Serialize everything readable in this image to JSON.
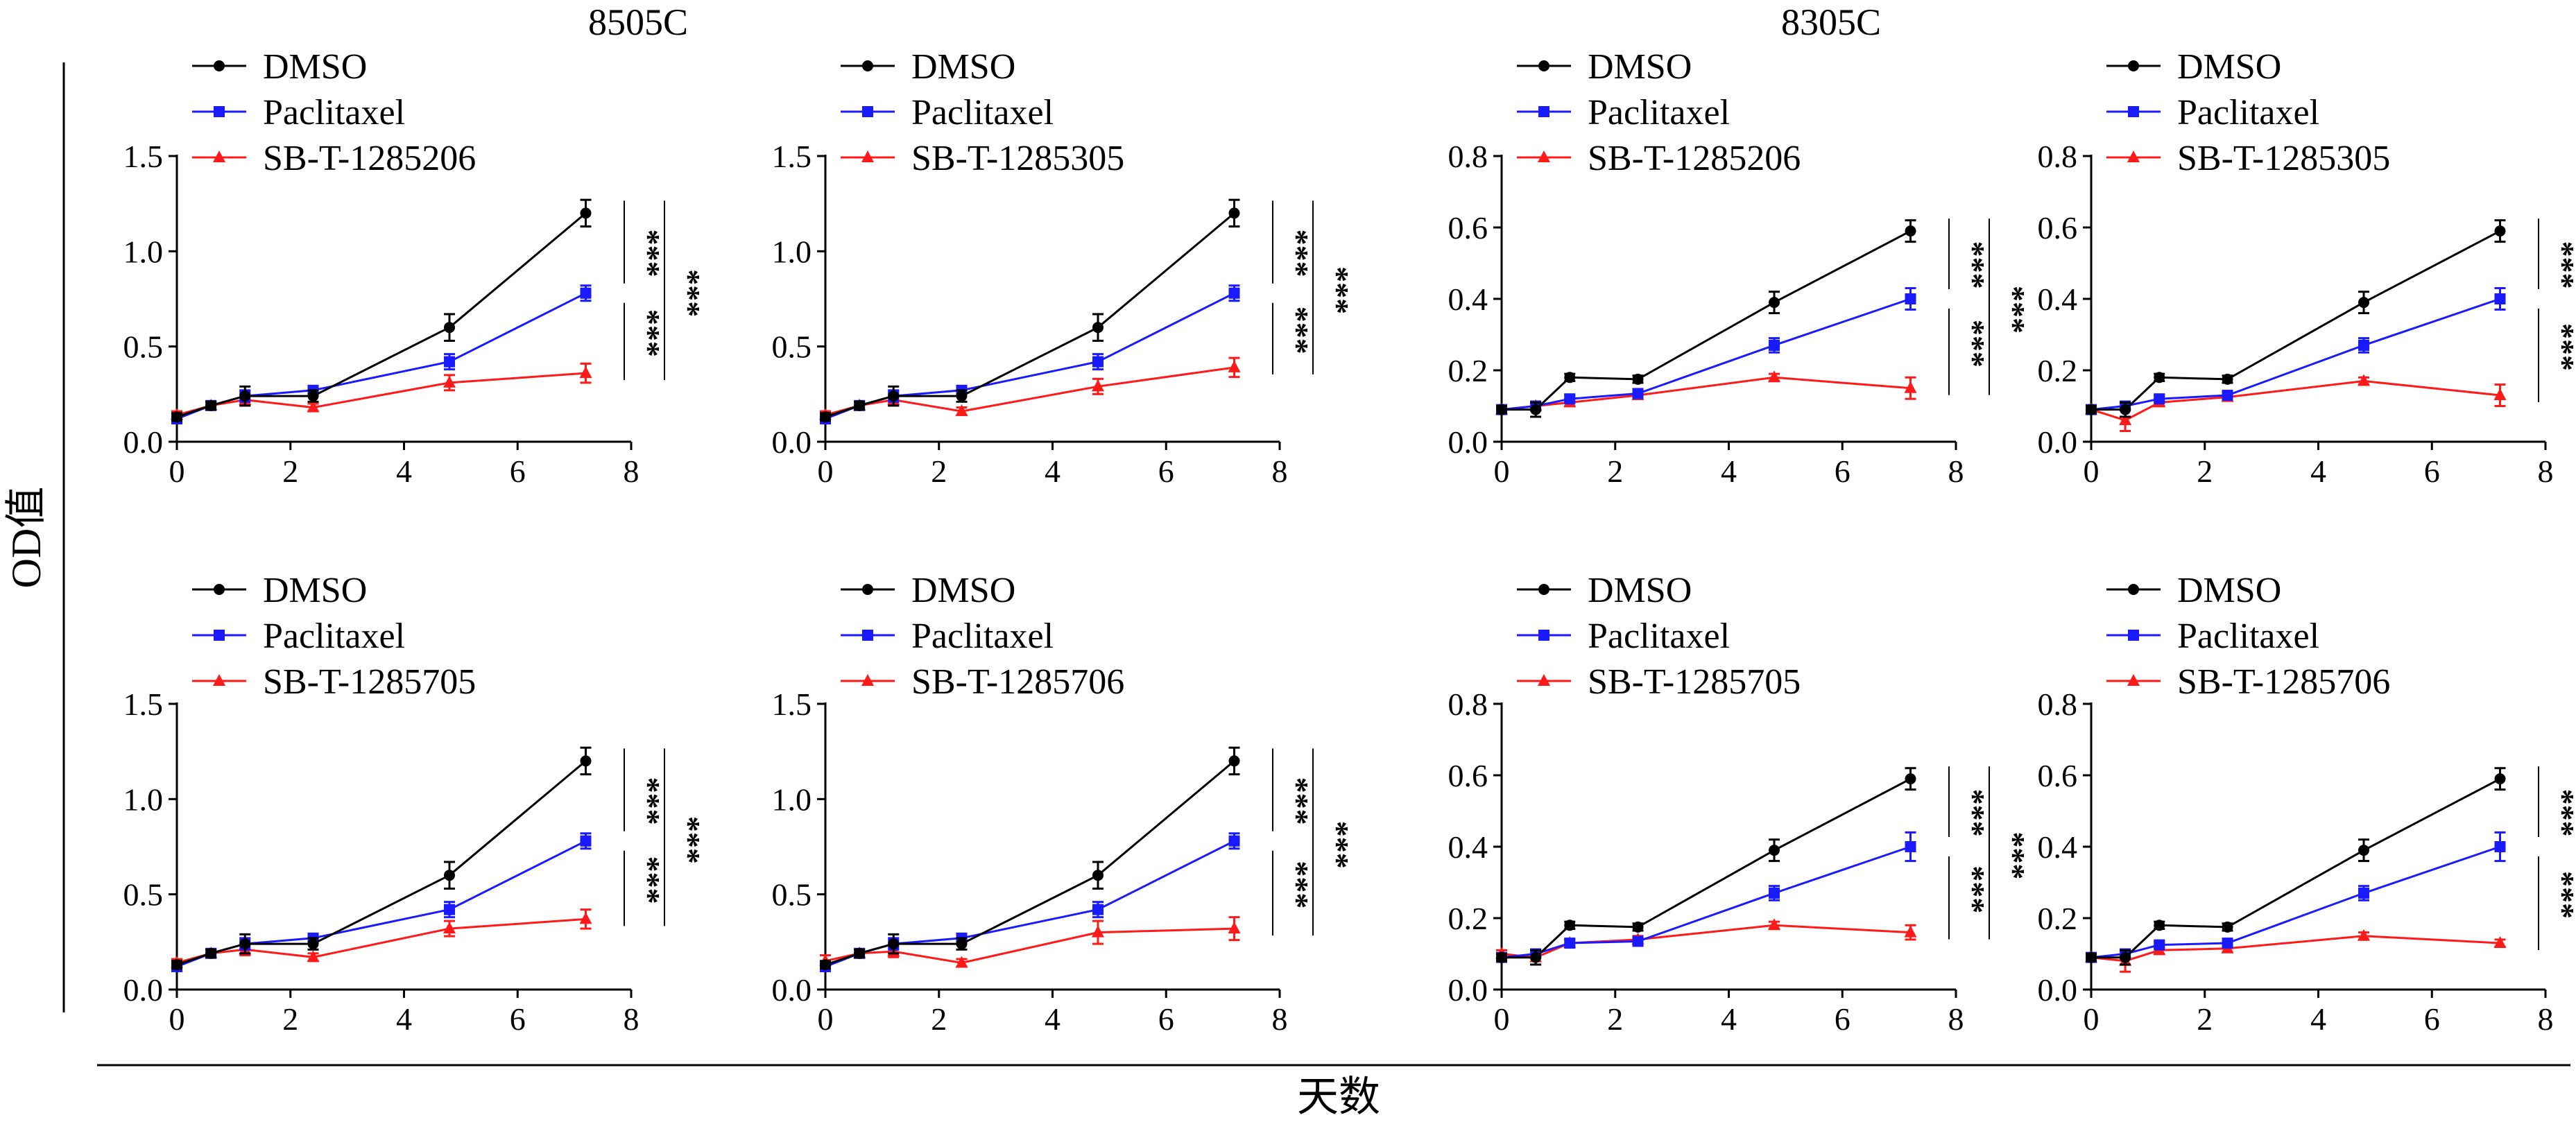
{
  "figure": {
    "group_titles": [
      "8505C",
      "8305C"
    ],
    "ylabel": "OD值",
    "xlabel": "天数"
  },
  "colors": {
    "DMSO": "#000000",
    "Paclitaxel": "#1a1aff",
    "SB": "#ff1a1a"
  },
  "chart_data": [
    {
      "type": "line",
      "group": "8505C",
      "row": 0,
      "col": 0,
      "x": [
        0,
        0.6,
        1.2,
        2.4,
        4.8,
        7.2
      ],
      "xlim": [
        0,
        8
      ],
      "xticks": [
        "0",
        "2",
        "4",
        "6",
        "8"
      ],
      "xtick_values": [
        0,
        2,
        4,
        6,
        8
      ],
      "ylim": [
        0,
        1.5
      ],
      "yticks": [
        "0.0",
        "0.5",
        "1.0",
        "1.5"
      ],
      "ytick_values": [
        0,
        0.5,
        1.0,
        1.5
      ],
      "series": [
        {
          "name": "DMSO",
          "marker": "circle",
          "values": [
            0.13,
            0.19,
            0.24,
            0.24,
            0.6,
            1.2
          ],
          "errors": [
            0.02,
            0.02,
            0.05,
            0.03,
            0.07,
            0.07
          ]
        },
        {
          "name": "Paclitaxel",
          "marker": "square",
          "values": [
            0.12,
            0.19,
            0.24,
            0.27,
            0.42,
            0.78
          ],
          "errors": [
            0.02,
            0.02,
            0.03,
            0.02,
            0.04,
            0.04
          ]
        },
        {
          "name": "SB-T-1285206",
          "marker": "triangle",
          "values": [
            0.14,
            0.19,
            0.22,
            0.18,
            0.31,
            0.36
          ],
          "errors": [
            0.02,
            0.02,
            0.03,
            0.02,
            0.04,
            0.05
          ]
        }
      ],
      "significance": [
        "***",
        "***",
        "***"
      ]
    },
    {
      "type": "line",
      "group": "8505C",
      "row": 0,
      "col": 1,
      "x": [
        0,
        0.6,
        1.2,
        2.4,
        4.8,
        7.2
      ],
      "xlim": [
        0,
        8
      ],
      "xticks": [
        "0",
        "2",
        "4",
        "6",
        "8"
      ],
      "xtick_values": [
        0,
        2,
        4,
        6,
        8
      ],
      "ylim": [
        0,
        1.5
      ],
      "yticks": [
        "0.0",
        "0.5",
        "1.0",
        "1.5"
      ],
      "ytick_values": [
        0,
        0.5,
        1.0,
        1.5
      ],
      "series": [
        {
          "name": "DMSO",
          "marker": "circle",
          "values": [
            0.13,
            0.19,
            0.24,
            0.24,
            0.6,
            1.2
          ],
          "errors": [
            0.02,
            0.02,
            0.05,
            0.03,
            0.07,
            0.07
          ]
        },
        {
          "name": "Paclitaxel",
          "marker": "square",
          "values": [
            0.12,
            0.19,
            0.24,
            0.27,
            0.42,
            0.78
          ],
          "errors": [
            0.02,
            0.02,
            0.03,
            0.02,
            0.04,
            0.04
          ]
        },
        {
          "name": "SB-T-1285305",
          "marker": "triangle",
          "values": [
            0.14,
            0.19,
            0.22,
            0.16,
            0.29,
            0.39
          ],
          "errors": [
            0.02,
            0.02,
            0.03,
            0.02,
            0.04,
            0.05
          ]
        }
      ],
      "significance": [
        "***",
        "***",
        "***"
      ]
    },
    {
      "type": "line",
      "group": "8305C",
      "row": 0,
      "col": 2,
      "x": [
        0,
        0.6,
        1.2,
        2.4,
        4.8,
        7.2
      ],
      "xlim": [
        0,
        8
      ],
      "xticks": [
        "0",
        "2",
        "4",
        "6",
        "8"
      ],
      "xtick_values": [
        0,
        2,
        4,
        6,
        8
      ],
      "ylim": [
        0,
        0.8
      ],
      "yticks": [
        "0.0",
        "0.2",
        "0.4",
        "0.6",
        "0.8"
      ],
      "ytick_values": [
        0,
        0.2,
        0.4,
        0.6,
        0.8
      ],
      "series": [
        {
          "name": "DMSO",
          "marker": "circle",
          "values": [
            0.09,
            0.09,
            0.18,
            0.175,
            0.39,
            0.59
          ],
          "errors": [
            0.01,
            0.02,
            0.01,
            0.01,
            0.03,
            0.03
          ]
        },
        {
          "name": "Paclitaxel",
          "marker": "square",
          "values": [
            0.09,
            0.1,
            0.12,
            0.135,
            0.27,
            0.4
          ],
          "errors": [
            0.01,
            0.01,
            0.01,
            0.01,
            0.02,
            0.03
          ]
        },
        {
          "name": "SB-T-1285206",
          "marker": "triangle",
          "values": [
            0.09,
            0.1,
            0.11,
            0.13,
            0.18,
            0.15
          ],
          "errors": [
            0.01,
            0.01,
            0.01,
            0.01,
            0.01,
            0.03
          ]
        }
      ],
      "significance": [
        "***",
        "***",
        "***"
      ]
    },
    {
      "type": "line",
      "group": "8305C",
      "row": 0,
      "col": 3,
      "x": [
        0,
        0.6,
        1.2,
        2.4,
        4.8,
        7.2
      ],
      "xlim": [
        0,
        8
      ],
      "xticks": [
        "0",
        "2",
        "4",
        "6",
        "8"
      ],
      "xtick_values": [
        0,
        2,
        4,
        6,
        8
      ],
      "ylim": [
        0,
        0.8
      ],
      "yticks": [
        "0.0",
        "0.2",
        "0.4",
        "0.6",
        "0.8"
      ],
      "ytick_values": [
        0,
        0.2,
        0.4,
        0.6,
        0.8
      ],
      "series": [
        {
          "name": "DMSO",
          "marker": "circle",
          "values": [
            0.09,
            0.09,
            0.18,
            0.175,
            0.39,
            0.59
          ],
          "errors": [
            0.01,
            0.02,
            0.01,
            0.01,
            0.03,
            0.03
          ]
        },
        {
          "name": "Paclitaxel",
          "marker": "square",
          "values": [
            0.09,
            0.1,
            0.12,
            0.13,
            0.27,
            0.4
          ],
          "errors": [
            0.01,
            0.01,
            0.01,
            0.01,
            0.02,
            0.03
          ]
        },
        {
          "name": "SB-T-1285305",
          "marker": "triangle",
          "values": [
            0.09,
            0.06,
            0.11,
            0.125,
            0.17,
            0.13
          ],
          "errors": [
            0.01,
            0.03,
            0.01,
            0.01,
            0.01,
            0.03
          ]
        }
      ],
      "significance": [
        "***",
        "***",
        "***"
      ]
    },
    {
      "type": "line",
      "group": "8505C",
      "row": 1,
      "col": 0,
      "x": [
        0,
        0.6,
        1.2,
        2.4,
        4.8,
        7.2
      ],
      "xlim": [
        0,
        8
      ],
      "xticks": [
        "0",
        "2",
        "4",
        "6",
        "8"
      ],
      "xtick_values": [
        0,
        2,
        4,
        6,
        8
      ],
      "ylim": [
        0,
        1.5
      ],
      "yticks": [
        "0.0",
        "0.5",
        "1.0",
        "1.5"
      ],
      "ytick_values": [
        0,
        0.5,
        1.0,
        1.5
      ],
      "series": [
        {
          "name": "DMSO",
          "marker": "circle",
          "values": [
            0.13,
            0.19,
            0.24,
            0.24,
            0.6,
            1.2
          ],
          "errors": [
            0.02,
            0.02,
            0.05,
            0.03,
            0.07,
            0.07
          ]
        },
        {
          "name": "Paclitaxel",
          "marker": "square",
          "values": [
            0.12,
            0.19,
            0.24,
            0.27,
            0.42,
            0.78
          ],
          "errors": [
            0.02,
            0.02,
            0.03,
            0.02,
            0.04,
            0.04
          ]
        },
        {
          "name": "SB-T-1285705",
          "marker": "triangle",
          "values": [
            0.14,
            0.19,
            0.21,
            0.17,
            0.32,
            0.37
          ],
          "errors": [
            0.02,
            0.02,
            0.03,
            0.02,
            0.04,
            0.05
          ]
        }
      ],
      "significance": [
        "***",
        "***",
        "***"
      ]
    },
    {
      "type": "line",
      "group": "8505C",
      "row": 1,
      "col": 1,
      "x": [
        0,
        0.6,
        1.2,
        2.4,
        4.8,
        7.2
      ],
      "xlim": [
        0,
        8
      ],
      "xticks": [
        "0",
        "2",
        "4",
        "6",
        "8"
      ],
      "xtick_values": [
        0,
        2,
        4,
        6,
        8
      ],
      "ylim": [
        0,
        1.5
      ],
      "yticks": [
        "0.0",
        "0.5",
        "1.0",
        "1.5"
      ],
      "ytick_values": [
        0,
        0.5,
        1.0,
        1.5
      ],
      "series": [
        {
          "name": "DMSO",
          "marker": "circle",
          "values": [
            0.13,
            0.19,
            0.24,
            0.24,
            0.6,
            1.2
          ],
          "errors": [
            0.02,
            0.02,
            0.05,
            0.03,
            0.07,
            0.07
          ]
        },
        {
          "name": "Paclitaxel",
          "marker": "square",
          "values": [
            0.12,
            0.19,
            0.24,
            0.27,
            0.42,
            0.78
          ],
          "errors": [
            0.02,
            0.02,
            0.03,
            0.02,
            0.04,
            0.04
          ]
        },
        {
          "name": "SB-T-1285706",
          "marker": "triangle",
          "values": [
            0.15,
            0.19,
            0.2,
            0.14,
            0.3,
            0.32
          ],
          "errors": [
            0.03,
            0.02,
            0.03,
            0.02,
            0.06,
            0.06
          ]
        }
      ],
      "significance": [
        "***",
        "***",
        "***"
      ]
    },
    {
      "type": "line",
      "group": "8305C",
      "row": 1,
      "col": 2,
      "x": [
        0,
        0.6,
        1.2,
        2.4,
        4.8,
        7.2
      ],
      "xlim": [
        0,
        8
      ],
      "xticks": [
        "0",
        "2",
        "4",
        "6",
        "8"
      ],
      "xtick_values": [
        0,
        2,
        4,
        6,
        8
      ],
      "ylim": [
        0,
        0.8
      ],
      "yticks": [
        "0.0",
        "0.2",
        "0.4",
        "0.6",
        "0.8"
      ],
      "ytick_values": [
        0,
        0.2,
        0.4,
        0.6,
        0.8
      ],
      "series": [
        {
          "name": "DMSO",
          "marker": "circle",
          "values": [
            0.09,
            0.09,
            0.18,
            0.175,
            0.39,
            0.59
          ],
          "errors": [
            0.01,
            0.02,
            0.01,
            0.01,
            0.03,
            0.03
          ]
        },
        {
          "name": "Paclitaxel",
          "marker": "square",
          "values": [
            0.09,
            0.1,
            0.13,
            0.135,
            0.27,
            0.4
          ],
          "errors": [
            0.01,
            0.01,
            0.01,
            0.01,
            0.02,
            0.04
          ]
        },
        {
          "name": "SB-T-1285705",
          "marker": "triangle",
          "values": [
            0.1,
            0.09,
            0.13,
            0.14,
            0.18,
            0.16
          ],
          "errors": [
            0.01,
            0.02,
            0.01,
            0.01,
            0.01,
            0.02
          ]
        }
      ],
      "significance": [
        "***",
        "***",
        "***"
      ]
    },
    {
      "type": "line",
      "group": "8305C",
      "row": 1,
      "col": 3,
      "x": [
        0,
        0.6,
        1.2,
        2.4,
        4.8,
        7.2
      ],
      "xlim": [
        0,
        8
      ],
      "xticks": [
        "0",
        "2",
        "4",
        "6",
        "8"
      ],
      "xtick_values": [
        0,
        2,
        4,
        6,
        8
      ],
      "ylim": [
        0,
        0.8
      ],
      "yticks": [
        "0.0",
        "0.2",
        "0.4",
        "0.6",
        "0.8"
      ],
      "ytick_values": [
        0,
        0.2,
        0.4,
        0.6,
        0.8
      ],
      "series": [
        {
          "name": "DMSO",
          "marker": "circle",
          "values": [
            0.09,
            0.09,
            0.18,
            0.175,
            0.39,
            0.59
          ],
          "errors": [
            0.01,
            0.02,
            0.01,
            0.01,
            0.03,
            0.03
          ]
        },
        {
          "name": "Paclitaxel",
          "marker": "square",
          "values": [
            0.09,
            0.1,
            0.125,
            0.13,
            0.27,
            0.4
          ],
          "errors": [
            0.01,
            0.01,
            0.01,
            0.01,
            0.02,
            0.04
          ]
        },
        {
          "name": "SB-T-1285706",
          "marker": "triangle",
          "values": [
            0.09,
            0.08,
            0.11,
            0.115,
            0.15,
            0.13
          ],
          "errors": [
            0.01,
            0.03,
            0.01,
            0.01,
            0.01,
            0.01
          ]
        }
      ],
      "significance": [
        "***",
        "***",
        "***"
      ]
    }
  ]
}
